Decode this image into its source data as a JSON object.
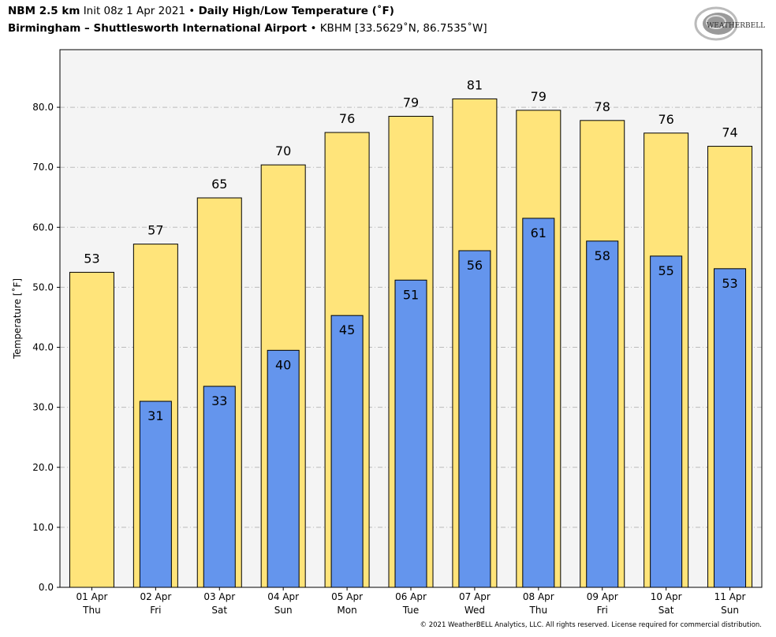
{
  "header": {
    "model": "NBM 2.5 km",
    "init": "Init 08z 1 Apr 2021",
    "bullet": "•",
    "title": "Daily High/Low Temperature (˚F)",
    "station_name": "Birmingham – Shuttlesworth International Airport",
    "station_info": "KBHM [33.5629˚N, 86.7535˚W]"
  },
  "logo_text": "WeatherBELL Analytics LLC",
  "copyright": "© 2021 WeatherBELL Analytics, LLC. All rights reserved. License required for commercial distribution.",
  "chart_data": {
    "type": "bar",
    "ylabel": "Temperature [˚F]",
    "ylim": [
      0,
      89.6
    ],
    "yticks": [
      "0.0",
      "10.0",
      "20.0",
      "30.0",
      "40.0",
      "50.0",
      "60.0",
      "70.0",
      "80.0"
    ],
    "grid": true,
    "categories": [
      [
        "01 Apr",
        "Thu"
      ],
      [
        "02 Apr",
        "Fri"
      ],
      [
        "03 Apr",
        "Sat"
      ],
      [
        "04 Apr",
        "Sun"
      ],
      [
        "05 Apr",
        "Mon"
      ],
      [
        "06 Apr",
        "Tue"
      ],
      [
        "07 Apr",
        "Wed"
      ],
      [
        "08 Apr",
        "Thu"
      ],
      [
        "09 Apr",
        "Fri"
      ],
      [
        "10 Apr",
        "Sat"
      ],
      [
        "11 Apr",
        "Sun"
      ]
    ],
    "series": [
      {
        "values": [
          52.5,
          57.2,
          64.9,
          70.4,
          75.8,
          78.5,
          81.4,
          79.5,
          77.8,
          75.7,
          73.5
        ],
        "labels": [
          "53",
          "57",
          "65",
          "70",
          "76",
          "79",
          "81",
          "79",
          "78",
          "76",
          "74"
        ],
        "color": "#FFE47A"
      },
      {
        "values": [
          null,
          31.0,
          33.5,
          39.5,
          45.3,
          51.2,
          56.1,
          61.5,
          57.7,
          55.2,
          53.1
        ],
        "labels": [
          "",
          "31",
          "33",
          "40",
          "45",
          "51",
          "56",
          "61",
          "58",
          "55",
          "53"
        ],
        "color": "#6495ED"
      }
    ]
  }
}
